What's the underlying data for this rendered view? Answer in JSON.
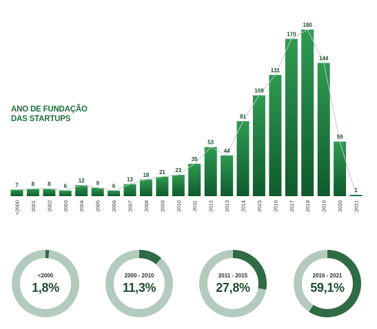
{
  "title_lines": [
    "ANO DE FUNDAÇÃO",
    "DAS STARTUPS"
  ],
  "colors": {
    "bar_top": "#2f9a52",
    "bar_bottom": "#0f5a2c",
    "line": "#b9ccc0",
    "donut_track": "#b3cbbd",
    "donut_fill": "#2f6b45"
  },
  "chart_data": [
    {
      "type": "bar",
      "categories": [
        "<2000",
        "2001",
        "2002",
        "2003",
        "2004",
        "2005",
        "2006",
        "2007",
        "2008",
        "2009",
        "2010",
        "2011",
        "2012",
        "2013",
        "2014",
        "2015",
        "2016",
        "2017",
        "2018",
        "2019",
        "2020",
        "2021"
      ],
      "values": [
        7,
        8,
        8,
        6,
        12,
        9,
        6,
        13,
        18,
        21,
        23,
        35,
        53,
        44,
        81,
        109,
        131,
        170,
        180,
        144,
        59,
        1
      ],
      "overlay": "line through bar tops",
      "ylim": [
        0,
        180
      ]
    },
    {
      "type": "pie",
      "style": "donut",
      "categories": [
        "<2000",
        "2000 - 2010",
        "2011 - 2015",
        "2016 - 2021"
      ],
      "values": [
        1.8,
        11.3,
        27.8,
        59.1
      ],
      "labels": [
        "1,8%",
        "11,3%",
        "27,8%",
        "59,1%"
      ]
    }
  ]
}
